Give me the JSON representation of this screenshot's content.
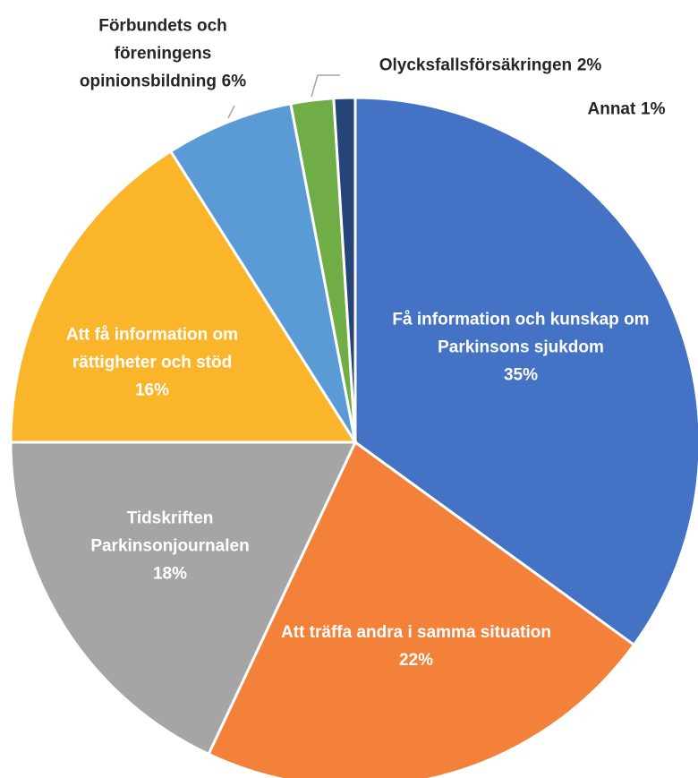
{
  "chart_data": {
    "type": "pie",
    "categories": [
      "Få information och kunskap om Parkinsons sjukdom",
      "Att träffa andra i samma situation",
      "Tidskriften Parkinsonjournalen",
      "Att få information om rättigheter och stöd",
      "Förbundets och föreningens opinionsbildning",
      "Olycksfallsförsäkringen",
      "Annat"
    ],
    "values": [
      35,
      22,
      18,
      16,
      6,
      2,
      1
    ],
    "value_labels": [
      "35%",
      "22%",
      "18%",
      "16%",
      "6%",
      "2%",
      "1%"
    ],
    "colors": [
      "#4472c4",
      "#f4813a",
      "#a5a5a5",
      "#fbb52a",
      "#5b9bd5",
      "#70ad47",
      "#264478"
    ]
  }
}
